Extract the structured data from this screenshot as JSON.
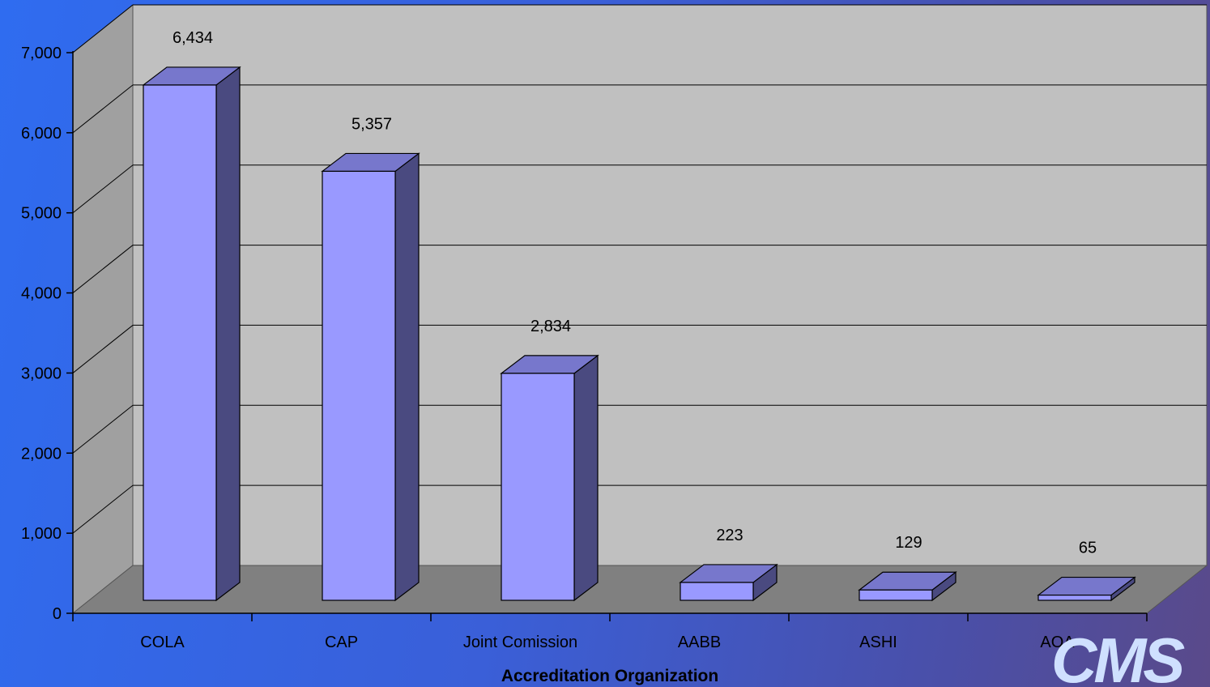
{
  "chart_data": {
    "type": "bar",
    "style": "3d-column",
    "categories": [
      "COLA",
      "CAP",
      "Joint Comission",
      "AABB",
      "ASHI",
      "AOA"
    ],
    "values": [
      6434,
      5357,
      2834,
      223,
      129,
      65
    ],
    "data_labels": [
      "6,434",
      "5,357",
      "2,834",
      "223",
      "129",
      "65"
    ],
    "xlabel": "Accreditation Organization",
    "ylabel": "",
    "ylim": [
      0,
      7000
    ],
    "yticks": [
      0,
      1000,
      2000,
      3000,
      4000,
      5000,
      6000,
      7000
    ],
    "ytick_labels": [
      "0",
      "1,000",
      "2,000",
      "3,000",
      "4,000",
      "5,000",
      "6,000",
      "7,000"
    ],
    "grid": true,
    "colors": {
      "bar_front": "#9999ff",
      "bar_top": "#7777cc",
      "bar_side": "#4a4a80",
      "back_wall": "#c0c0c0",
      "side_wall": "#a0a0a0",
      "floor": "#808080"
    }
  },
  "logo": {
    "text": "CMS",
    "color": "#cfe0ff"
  }
}
